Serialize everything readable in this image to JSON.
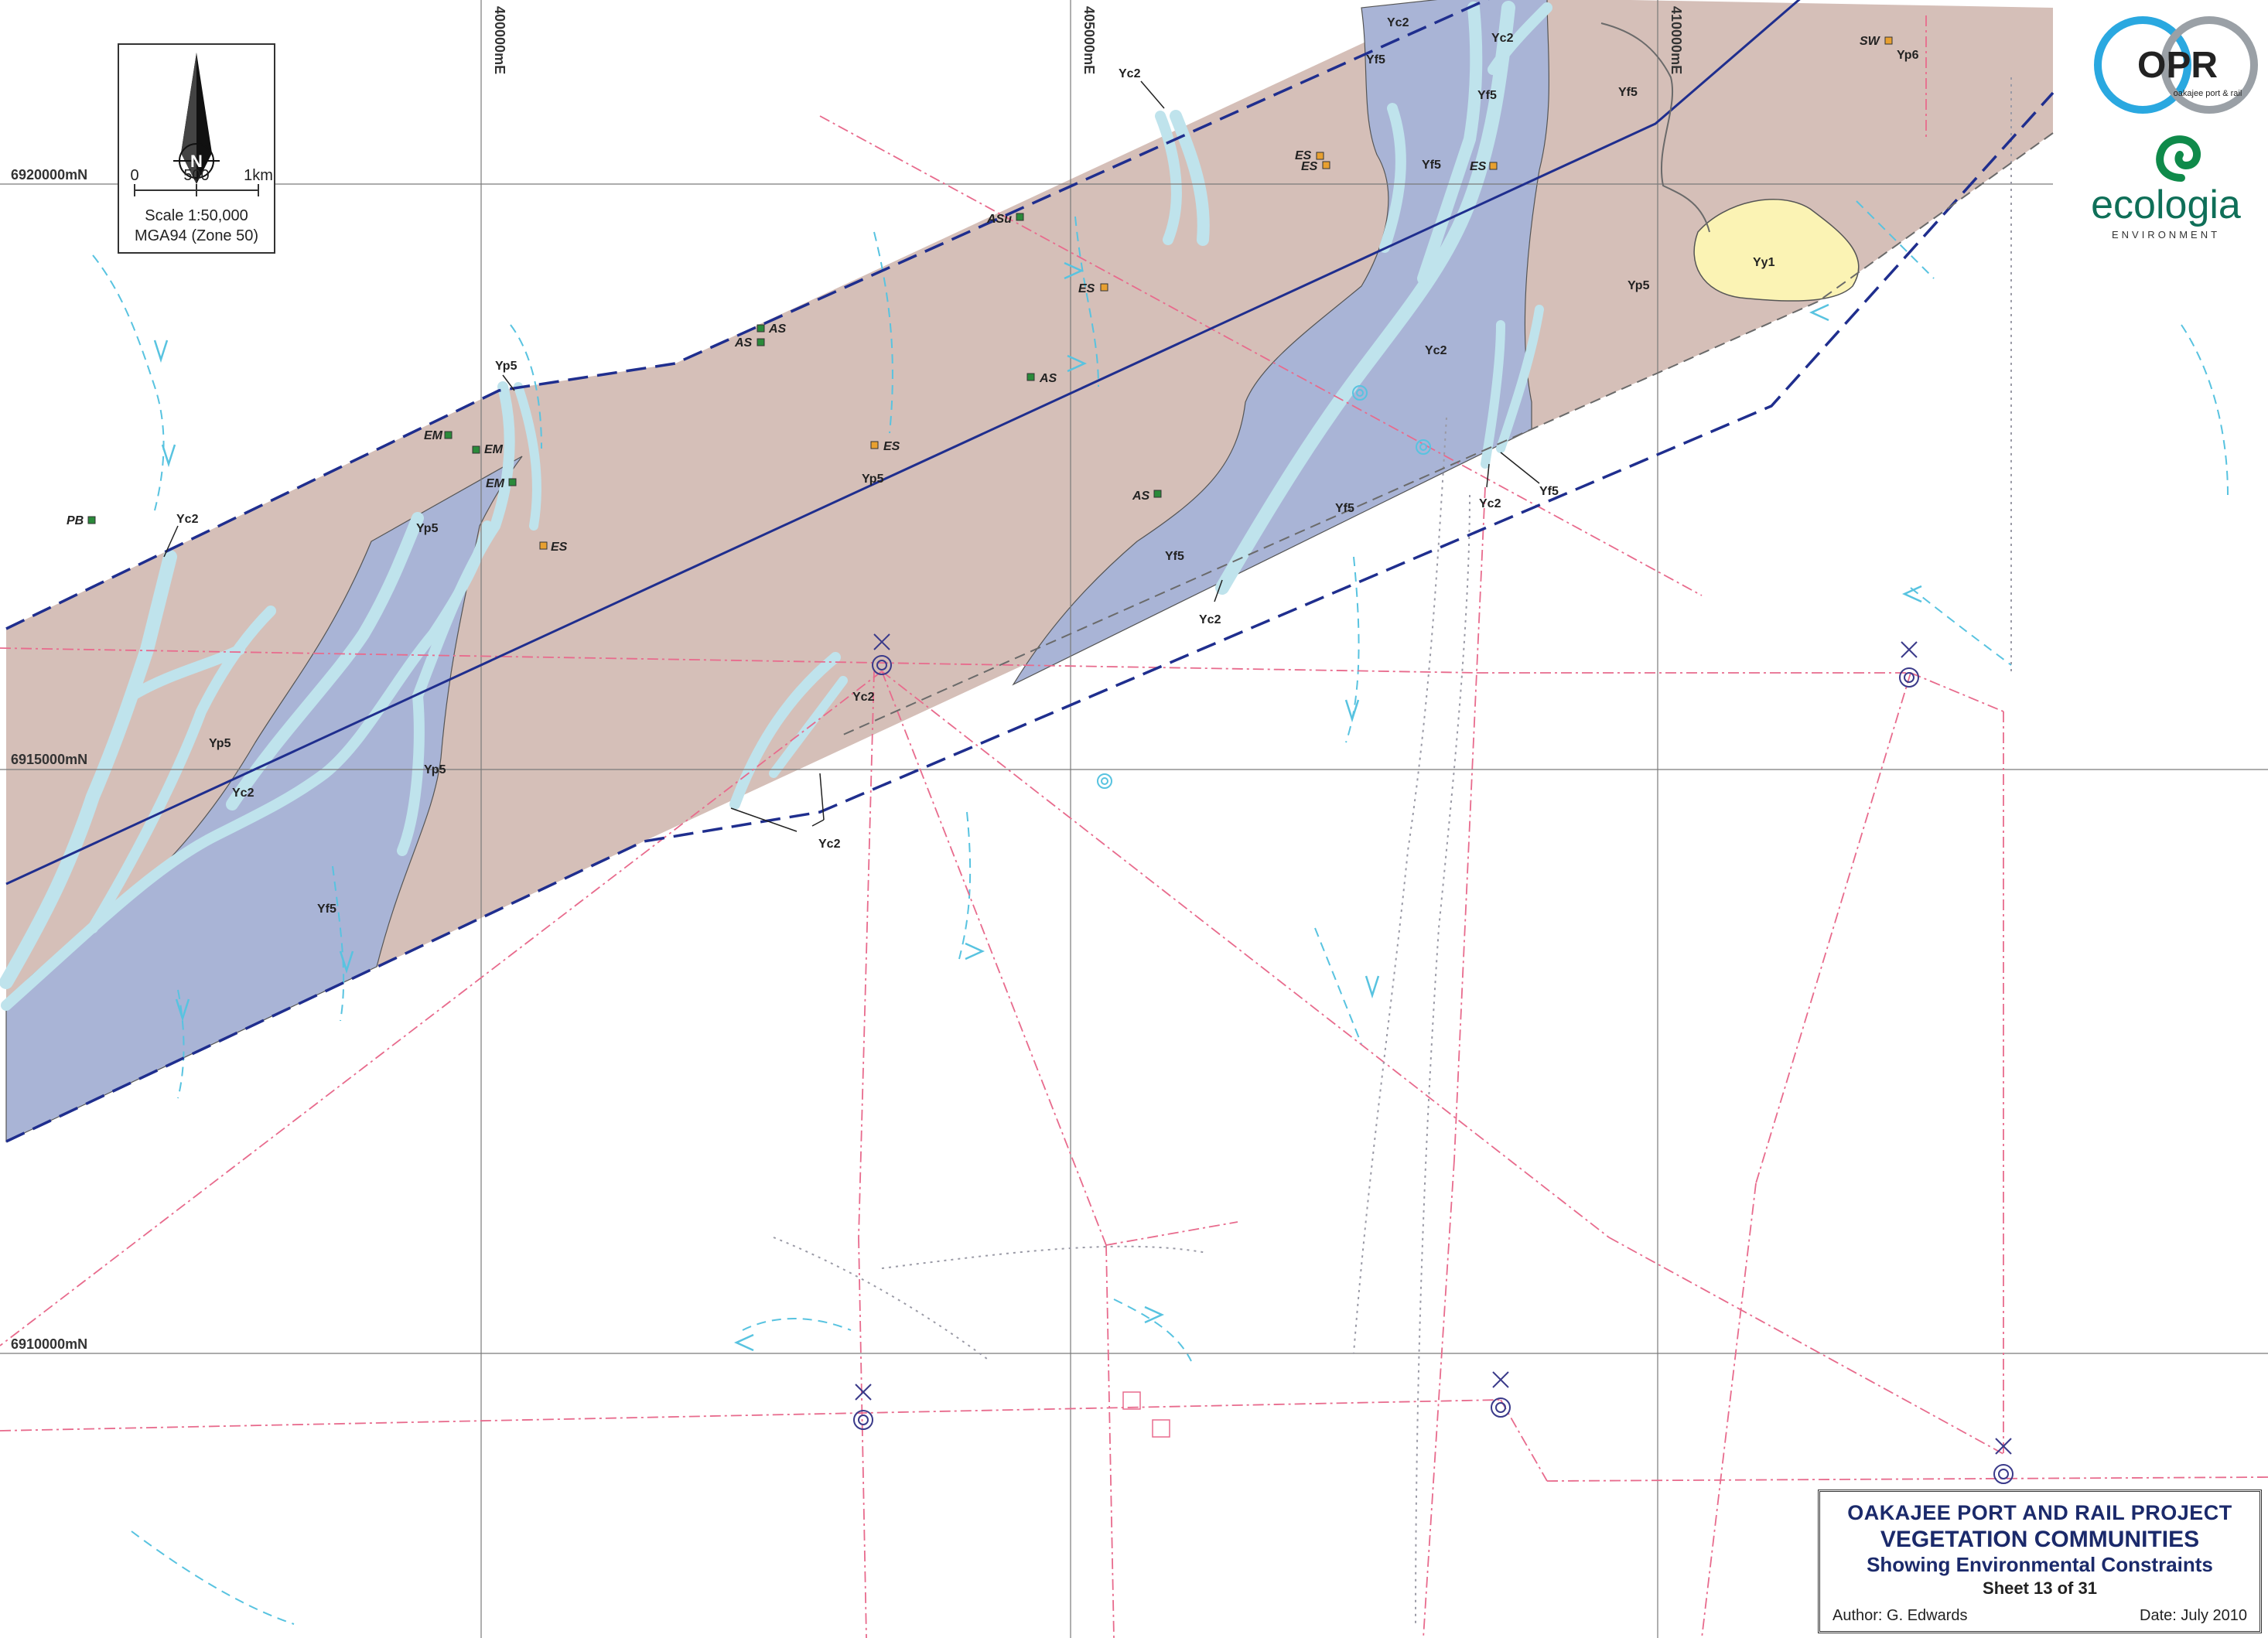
{
  "title_block": {
    "project": "OAKAJEE PORT AND RAIL PROJECT",
    "title": "VEGETATION COMMUNITIES",
    "subtitle": "Showing Environmental Constraints",
    "sheet": "Sheet 13 of 31",
    "author": "Author: G. Edwards",
    "date": "Date: July 2010"
  },
  "scale_bar": {
    "north": "N",
    "tick_0": "0",
    "tick_500": "500",
    "tick_1km": "1km",
    "scale": "Scale 1:50,000",
    "projection": "MGA94 (Zone 50)"
  },
  "logos": {
    "opr_text": "OPR",
    "opr_sub": "oakajee port & rail",
    "ecologia_text": "ecologia",
    "ecologia_sub": "ENVIRONMENT"
  },
  "grid_labels": {
    "n_6920000": "6920000mN",
    "n_6915000": "6915000mN",
    "n_6910000": "6910000mN",
    "e_400000": "400000mE",
    "e_405000": "405000mE",
    "e_410000": "410000mE"
  },
  "community_labels": [
    {
      "text": "Yc2"
    },
    {
      "text": "Yf5"
    },
    {
      "text": "Yf5"
    },
    {
      "text": "Yf5"
    },
    {
      "text": "Yc2"
    },
    {
      "text": "Yc2"
    },
    {
      "text": "Yf5"
    },
    {
      "text": "Yc2"
    },
    {
      "text": "Yf5"
    },
    {
      "text": "Yf5"
    },
    {
      "text": "Yc2"
    },
    {
      "text": "Yp5"
    },
    {
      "text": "Yp5"
    },
    {
      "text": "Yp5"
    },
    {
      "text": "Yp5"
    },
    {
      "text": "Yp5"
    },
    {
      "text": "Yc2"
    },
    {
      "text": "Yp6"
    },
    {
      "text": "Yy1"
    },
    {
      "text": "Yp5"
    },
    {
      "text": "Yc2"
    },
    {
      "text": "Yc2"
    },
    {
      "text": "Yf5"
    },
    {
      "text": "Yc2"
    },
    {
      "text": "Yf5"
    },
    {
      "text": "Yc2"
    }
  ],
  "site_labels": [
    {
      "text": "SW"
    },
    {
      "text": "ES"
    },
    {
      "text": "ES"
    },
    {
      "text": "ES"
    },
    {
      "text": "ASu"
    },
    {
      "text": "ES"
    },
    {
      "text": "AS"
    },
    {
      "text": "AS"
    },
    {
      "text": "AS"
    },
    {
      "text": "EM"
    },
    {
      "text": "EM"
    },
    {
      "text": "EM"
    },
    {
      "text": "ES"
    },
    {
      "text": "PB"
    },
    {
      "text": "ES"
    },
    {
      "text": "AS"
    }
  ],
  "colors": {
    "yp_brown": "#d5bfb8",
    "yf_blue": "#a9b4d6",
    "yc_cyan": "#bfe3ec",
    "yy_yellow": "#fbf3b4",
    "corridor_navy": "#1f2e8e",
    "drainage": "#58c3e0",
    "road_pink": "#e86b8d",
    "grid": "#7a7a7a"
  }
}
